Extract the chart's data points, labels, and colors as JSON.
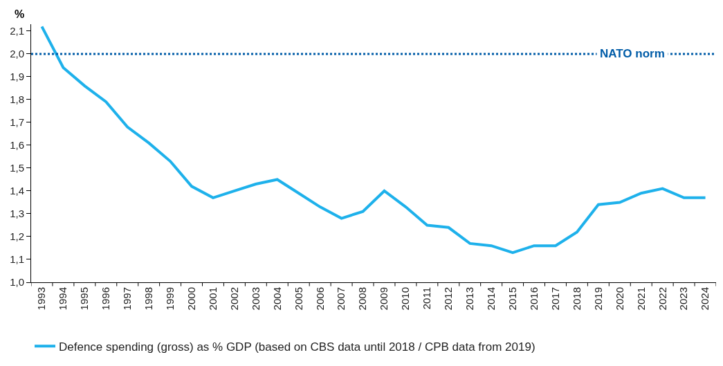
{
  "chart_data": {
    "type": "line",
    "ylabel": "%",
    "categories": [
      "1993",
      "1994",
      "1995",
      "1996",
      "1997",
      "1998",
      "1999",
      "2000",
      "2001",
      "2002",
      "2003",
      "2004",
      "2005",
      "2006",
      "2007",
      "2008",
      "2009",
      "2010",
      "2011",
      "2012",
      "2013",
      "2014",
      "2015",
      "2016",
      "2017",
      "2018",
      "2019",
      "2020",
      "2021",
      "2022",
      "2023",
      "2024"
    ],
    "series": [
      {
        "name": "Defence spending (gross) as % GDP (based on CBS data until 2018 / CPB data from 2019)",
        "color": "#1eb1eb",
        "values": [
          2.12,
          1.94,
          1.86,
          1.79,
          1.68,
          1.61,
          1.53,
          1.42,
          1.37,
          1.4,
          1.43,
          1.45,
          1.39,
          1.33,
          1.28,
          1.31,
          1.4,
          1.33,
          1.25,
          1.24,
          1.17,
          1.16,
          1.13,
          1.16,
          1.16,
          1.22,
          1.34,
          1.35,
          1.39,
          1.41,
          1.37,
          1.37
        ]
      }
    ],
    "ylim": [
      1.0,
      2.13
    ],
    "yticks": [
      {
        "value": 1.0,
        "label": "1,0"
      },
      {
        "value": 1.1,
        "label": "1,1"
      },
      {
        "value": 1.2,
        "label": "1,2"
      },
      {
        "value": 1.3,
        "label": "1,3"
      },
      {
        "value": 1.4,
        "label": "1,4"
      },
      {
        "value": 1.5,
        "label": "1,5"
      },
      {
        "value": 1.6,
        "label": "1,6"
      },
      {
        "value": 1.7,
        "label": "1,7"
      },
      {
        "value": 1.8,
        "label": "1,8"
      },
      {
        "value": 1.9,
        "label": "1,9"
      },
      {
        "value": 2.0,
        "label": "2,0"
      },
      {
        "value": 2.1,
        "label": "2,1"
      }
    ],
    "ref_lines": [
      {
        "axis": "y",
        "value": 2.0,
        "label": "NATO norm",
        "color": "#005ca8",
        "line_style": "dotted"
      }
    ],
    "legend": "bottom",
    "line_style": "solid"
  }
}
